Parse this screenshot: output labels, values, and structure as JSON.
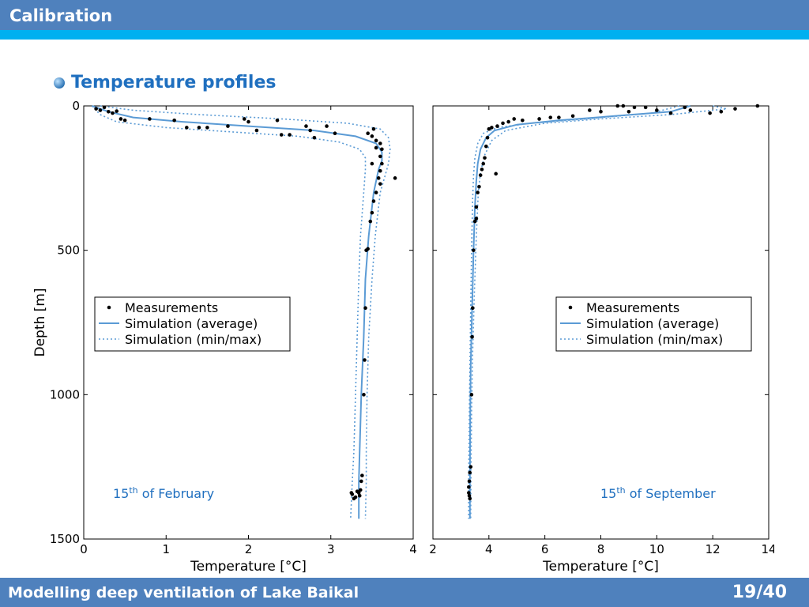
{
  "header": {
    "title": "Calibration"
  },
  "section": {
    "heading": "Temperature profiles"
  },
  "footer": {
    "title": "Modelling deep ventilation of Lake Baikal",
    "page": "19/40"
  },
  "legend": {
    "measurements": "Measurements",
    "sim_avg": "Simulation (average)",
    "sim_minmax": "Simulation (min/max)"
  },
  "colors": {
    "header": "#4f81bd",
    "accent": "#00b0f0",
    "simulation": "#5b9bd5",
    "annotation": "#1f6fbf"
  },
  "chart_data": [
    {
      "type": "line",
      "annotation_base": "15",
      "annotation_sup": "th",
      "annotation_rest": " of February",
      "xlabel": "Temperature [°C]",
      "ylabel": "Depth [m]",
      "xlim": [
        0,
        4
      ],
      "ylim": [
        1500,
        0
      ],
      "xticks": [
        "0",
        "1",
        "2",
        "3",
        "4"
      ],
      "yticks": [
        "0",
        "500",
        "1000",
        "1500"
      ],
      "grid": false,
      "legend_position": "center-left",
      "series": [
        {
          "role": "average",
          "points": [
            [
              0.1,
              0
            ],
            [
              0.3,
              20
            ],
            [
              0.6,
              40
            ],
            [
              1.2,
              55
            ],
            [
              2.0,
              70
            ],
            [
              2.8,
              85
            ],
            [
              3.3,
              105
            ],
            [
              3.55,
              130
            ],
            [
              3.62,
              160
            ],
            [
              3.62,
              190
            ],
            [
              3.58,
              220
            ],
            [
              3.52,
              300
            ],
            [
              3.46,
              450
            ],
            [
              3.42,
              600
            ],
            [
              3.4,
              800
            ],
            [
              3.37,
              1000
            ],
            [
              3.35,
              1200
            ],
            [
              3.34,
              1300
            ],
            [
              3.34,
              1430
            ]
          ]
        },
        {
          "role": "min",
          "points": [
            [
              0.1,
              0
            ],
            [
              0.2,
              30
            ],
            [
              0.4,
              55
            ],
            [
              1.0,
              75
            ],
            [
              1.8,
              90
            ],
            [
              2.6,
              105
            ],
            [
              3.1,
              125
            ],
            [
              3.35,
              150
            ],
            [
              3.42,
              180
            ],
            [
              3.42,
              220
            ],
            [
              3.4,
              300
            ],
            [
              3.36,
              450
            ],
            [
              3.34,
              600
            ],
            [
              3.32,
              800
            ],
            [
              3.3,
              1000
            ],
            [
              3.28,
              1200
            ],
            [
              3.26,
              1300
            ],
            [
              3.24,
              1430
            ]
          ]
        },
        {
          "role": "max",
          "points": [
            [
              0.2,
              0
            ],
            [
              0.6,
              15
            ],
            [
              1.4,
              30
            ],
            [
              2.4,
              45
            ],
            [
              3.2,
              60
            ],
            [
              3.6,
              80
            ],
            [
              3.7,
              110
            ],
            [
              3.72,
              150
            ],
            [
              3.7,
              200
            ],
            [
              3.66,
              240
            ],
            [
              3.6,
              300
            ],
            [
              3.54,
              450
            ],
            [
              3.5,
              600
            ],
            [
              3.46,
              800
            ],
            [
              3.44,
              1000
            ],
            [
              3.43,
              1200
            ],
            [
              3.43,
              1300
            ],
            [
              3.42,
              1430
            ]
          ]
        }
      ],
      "measurements": [
        [
          0.15,
          10
        ],
        [
          0.2,
          15
        ],
        [
          0.25,
          5
        ],
        [
          0.3,
          20
        ],
        [
          0.35,
          25
        ],
        [
          0.4,
          18
        ],
        [
          0.45,
          45
        ],
        [
          0.5,
          50
        ],
        [
          0.8,
          45
        ],
        [
          1.1,
          50
        ],
        [
          1.25,
          75
        ],
        [
          1.4,
          75
        ],
        [
          1.5,
          75
        ],
        [
          1.75,
          70
        ],
        [
          1.95,
          45
        ],
        [
          2.0,
          55
        ],
        [
          2.1,
          85
        ],
        [
          2.35,
          50
        ],
        [
          2.4,
          100
        ],
        [
          2.5,
          100
        ],
        [
          2.7,
          70
        ],
        [
          2.75,
          85
        ],
        [
          2.8,
          110
        ],
        [
          2.95,
          70
        ],
        [
          3.05,
          95
        ],
        [
          3.45,
          95
        ],
        [
          3.5,
          105
        ],
        [
          3.52,
          80
        ],
        [
          3.55,
          120
        ],
        [
          3.55,
          145
        ],
        [
          3.6,
          130
        ],
        [
          3.6,
          175
        ],
        [
          3.62,
          200
        ],
        [
          3.6,
          225
        ],
        [
          3.58,
          250
        ],
        [
          3.6,
          270
        ],
        [
          3.55,
          300
        ],
        [
          3.52,
          330
        ],
        [
          3.5,
          370
        ],
        [
          3.48,
          400
        ],
        [
          3.45,
          495
        ],
        [
          3.43,
          500
        ],
        [
          3.42,
          700
        ],
        [
          3.41,
          880
        ],
        [
          3.4,
          1000
        ],
        [
          3.38,
          1280
        ],
        [
          3.37,
          1300
        ],
        [
          3.36,
          1330
        ],
        [
          3.35,
          1350
        ],
        [
          3.34,
          1340
        ],
        [
          3.32,
          1335
        ],
        [
          3.3,
          1355
        ],
        [
          3.28,
          1360
        ],
        [
          3.26,
          1345
        ],
        [
          3.25,
          1340
        ],
        [
          3.78,
          250
        ],
        [
          3.62,
          150
        ],
        [
          3.5,
          200
        ]
      ]
    },
    {
      "type": "line",
      "annotation_base": "15",
      "annotation_sup": "th",
      "annotation_rest": " of September",
      "xlabel": "Temperature [°C]",
      "ylabel": "",
      "xlim": [
        2,
        14
      ],
      "ylim": [
        1500,
        0
      ],
      "xticks": [
        "2",
        "4",
        "6",
        "8",
        "10",
        "12",
        "14"
      ],
      "yticks": [],
      "grid": false,
      "legend_position": "center-right",
      "series": [
        {
          "role": "average",
          "points": [
            [
              11.2,
              0
            ],
            [
              10.5,
              20
            ],
            [
              8.5,
              35
            ],
            [
              6.5,
              50
            ],
            [
              5.0,
              65
            ],
            [
              4.2,
              85
            ],
            [
              3.9,
              110
            ],
            [
              3.7,
              150
            ],
            [
              3.6,
              200
            ],
            [
              3.55,
              260
            ],
            [
              3.5,
              350
            ],
            [
              3.45,
              500
            ],
            [
              3.4,
              700
            ],
            [
              3.35,
              900
            ],
            [
              3.33,
              1100
            ],
            [
              3.32,
              1300
            ],
            [
              3.32,
              1430
            ]
          ]
        },
        {
          "role": "min",
          "points": [
            [
              10.8,
              0
            ],
            [
              9.8,
              25
            ],
            [
              7.5,
              45
            ],
            [
              5.5,
              60
            ],
            [
              4.3,
              75
            ],
            [
              3.8,
              95
            ],
            [
              3.6,
              130
            ],
            [
              3.5,
              180
            ],
            [
              3.45,
              240
            ],
            [
              3.42,
              320
            ],
            [
              3.38,
              500
            ],
            [
              3.35,
              700
            ],
            [
              3.32,
              900
            ],
            [
              3.3,
              1100
            ],
            [
              3.28,
              1300
            ],
            [
              3.28,
              1430
            ]
          ]
        },
        {
          "role": "max",
          "points": [
            [
              12.0,
              0
            ],
            [
              12.5,
              10
            ],
            [
              10.5,
              30
            ],
            [
              8.0,
              45
            ],
            [
              6.0,
              60
            ],
            [
              4.6,
              85
            ],
            [
              4.1,
              120
            ],
            [
              3.85,
              170
            ],
            [
              3.7,
              230
            ],
            [
              3.62,
              300
            ],
            [
              3.55,
              450
            ],
            [
              3.48,
              650
            ],
            [
              3.42,
              850
            ],
            [
              3.38,
              1050
            ],
            [
              3.36,
              1250
            ],
            [
              3.35,
              1430
            ]
          ]
        }
      ],
      "measurements": [
        [
          13.6,
          0
        ],
        [
          12.8,
          10
        ],
        [
          12.3,
          20
        ],
        [
          11.9,
          25
        ],
        [
          11.2,
          15
        ],
        [
          11.0,
          5
        ],
        [
          10.5,
          25
        ],
        [
          10.0,
          15
        ],
        [
          9.6,
          5
        ],
        [
          9.2,
          5
        ],
        [
          9.0,
          20
        ],
        [
          8.8,
          0
        ],
        [
          8.6,
          0
        ],
        [
          8.0,
          20
        ],
        [
          7.6,
          15
        ],
        [
          7.0,
          35
        ],
        [
          6.5,
          40
        ],
        [
          6.2,
          40
        ],
        [
          5.8,
          45
        ],
        [
          5.2,
          50
        ],
        [
          4.9,
          45
        ],
        [
          4.7,
          55
        ],
        [
          4.5,
          60
        ],
        [
          4.3,
          70
        ],
        [
          4.1,
          75
        ],
        [
          4.0,
          80
        ],
        [
          3.95,
          110
        ],
        [
          3.9,
          140
        ],
        [
          3.85,
          180
        ],
        [
          3.8,
          200
        ],
        [
          3.75,
          220
        ],
        [
          3.7,
          240
        ],
        [
          4.25,
          235
        ],
        [
          3.65,
          280
        ],
        [
          3.6,
          300
        ],
        [
          3.55,
          350
        ],
        [
          3.55,
          390
        ],
        [
          3.5,
          400
        ],
        [
          3.45,
          500
        ],
        [
          3.42,
          700
        ],
        [
          3.4,
          800
        ],
        [
          3.38,
          1000
        ],
        [
          3.35,
          1250
        ],
        [
          3.32,
          1270
        ],
        [
          3.3,
          1300
        ],
        [
          3.28,
          1320
        ],
        [
          3.28,
          1340
        ],
        [
          3.3,
          1350
        ],
        [
          3.32,
          1360
        ]
      ]
    }
  ]
}
